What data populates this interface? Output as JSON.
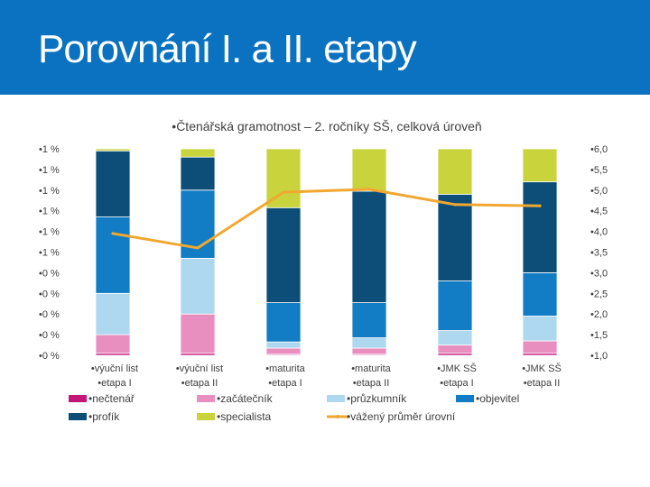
{
  "slide": {
    "title": "Porovnání I. a II. etapy"
  },
  "colors": {
    "header": "#0a72c0",
    "necteнar": "#c4167a",
    "zacatecnik": "#e98fc0",
    "pruzkumnik": "#add8f0",
    "objevitel": "#127cc4",
    "profik": "#0c4e78",
    "specialista": "#c9d43d",
    "prumer": "#f0a830"
  },
  "chart_data": {
    "type": "bar",
    "stacked": true,
    "title": "Čtenářská gramotnost – 2. ročníky SŠ, celková úroveň",
    "categories": [
      [
        "výuční list",
        "etapa I"
      ],
      [
        "výuční list",
        "etapa II"
      ],
      [
        "maturita",
        "etapa I"
      ],
      [
        "maturita",
        "etapa II"
      ],
      [
        "JMK SŠ",
        "etapa I"
      ],
      [
        "JMK SŠ",
        "etapa II"
      ]
    ],
    "y_left": {
      "ticks": [
        "1 %",
        "1 %",
        "1 %",
        "1 %",
        "1 %",
        "1 %",
        "0 %",
        "0 %",
        "0 %",
        "0 %",
        "0 %"
      ],
      "ylim": [
        0,
        1
      ]
    },
    "y_right": {
      "ticks": [
        "6,0",
        "5,5",
        "5,0",
        "4,5",
        "4,0",
        "3,5",
        "3,0",
        "2,5",
        "2,0",
        "1,5",
        "1,0"
      ],
      "ylim": [
        1.0,
        6.0
      ]
    },
    "series": [
      {
        "name": "nečtenář",
        "color": "#c4167a",
        "values": [
          0.01,
          0.01,
          0.005,
          0.005,
          0.01,
          0.01
        ]
      },
      {
        "name": "začátečník",
        "color": "#e98fc0",
        "values": [
          0.09,
          0.19,
          0.03,
          0.03,
          0.04,
          0.06
        ]
      },
      {
        "name": "průzkumník",
        "color": "#add8f0",
        "values": [
          0.2,
          0.27,
          0.03,
          0.05,
          0.07,
          0.12
        ]
      },
      {
        "name": "objevitel",
        "color": "#127cc4",
        "values": [
          0.37,
          0.33,
          0.19,
          0.17,
          0.24,
          0.21
        ]
      },
      {
        "name": "profík",
        "color": "#0c4e78",
        "values": [
          0.32,
          0.16,
          0.46,
          0.54,
          0.42,
          0.44
        ]
      },
      {
        "name": "specialista",
        "color": "#c9d43d",
        "values": [
          0.01,
          0.04,
          0.285,
          0.205,
          0.22,
          0.16
        ]
      }
    ],
    "line": {
      "name": "vážený průměr úrovní",
      "color": "#f0a830",
      "axis": "right",
      "values": [
        3.95,
        3.6,
        4.95,
        5.02,
        4.65,
        4.62
      ]
    },
    "legend_position": "bottom",
    "grid": false
  }
}
